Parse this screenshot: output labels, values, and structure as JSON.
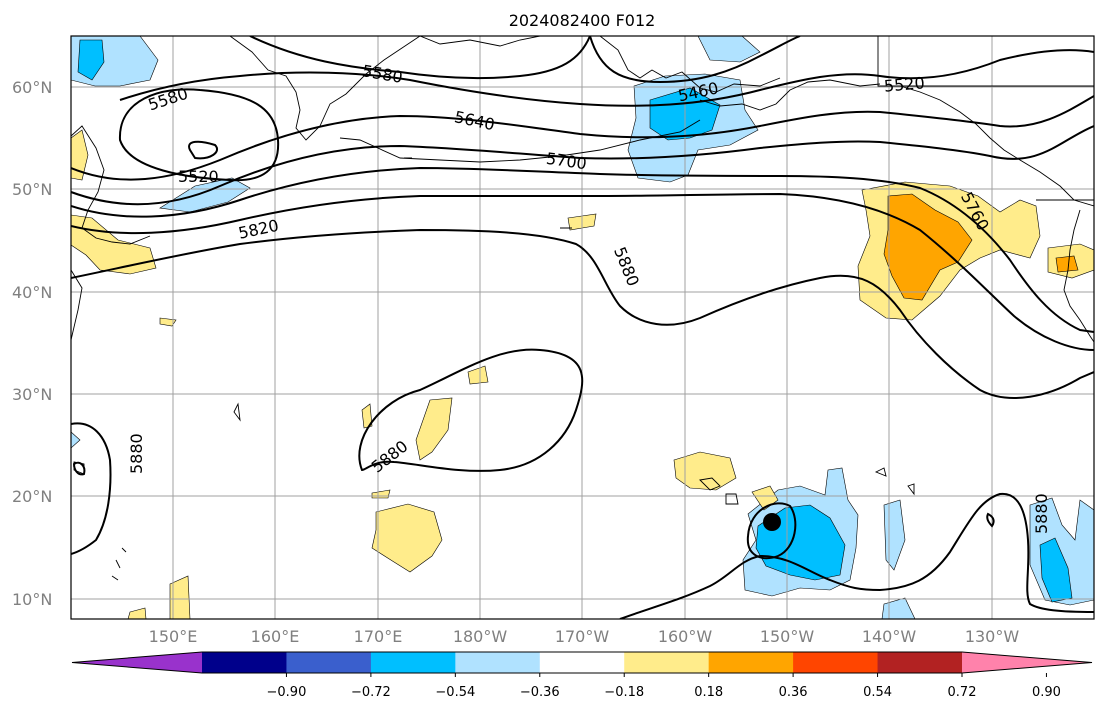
{
  "title": "2024082400 F012",
  "lat_labels": [
    "60°N",
    "50°N",
    "40°N",
    "30°N",
    "20°N",
    "10°N"
  ],
  "lon_labels": [
    "150°E",
    "160°E",
    "170°E",
    "180°W",
    "170°W",
    "160°W",
    "150°W",
    "140°W",
    "130°W"
  ],
  "contour_labels": [
    "5580",
    "5580",
    "5520",
    "5520",
    "5460",
    "5640",
    "5700",
    "5820",
    "5760",
    "5880",
    "5880",
    "5880",
    "5880"
  ],
  "colorbar": {
    "colors": [
      "#9932cc",
      "#00008b",
      "#3a5fcd",
      "#00bfff",
      "#b0e2ff",
      "#ffffff",
      "#ffec8b",
      "#ffa500",
      "#ff4500",
      "#b22222",
      "#ff82ab"
    ],
    "labels": [
      "−0.90",
      "−0.72",
      "−0.54",
      "−0.36",
      "−0.18",
      "0.18",
      "0.36",
      "0.54",
      "0.72",
      "0.90"
    ]
  },
  "colors": {
    "coast": "#000000",
    "grid": "#a0a0a0",
    "contour": "#000000",
    "label_gray": "#808080"
  },
  "marker": "storm-center-dot"
}
